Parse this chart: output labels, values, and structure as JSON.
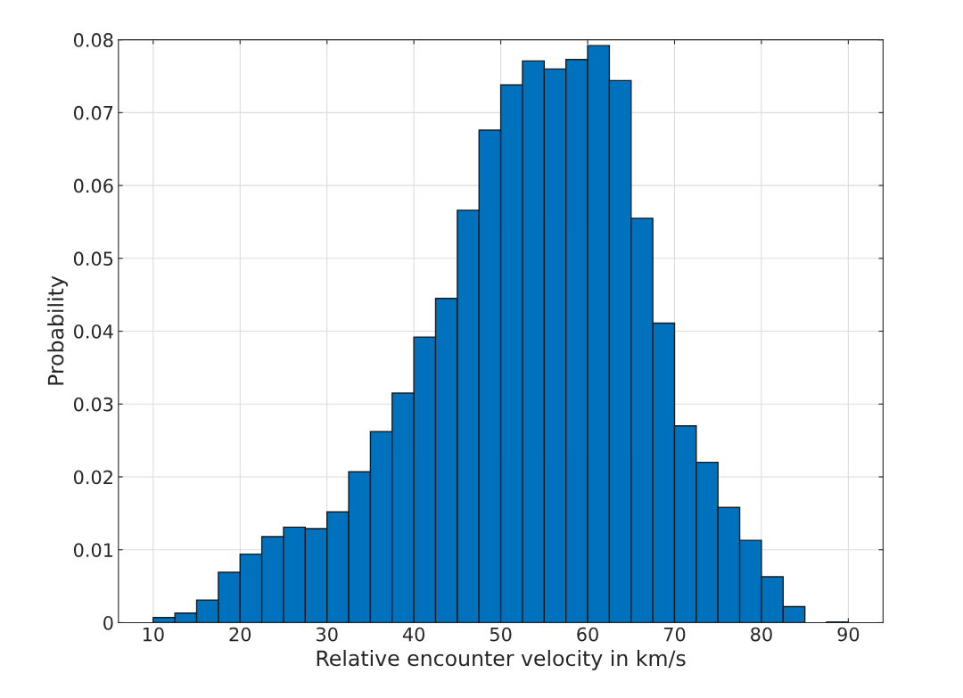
{
  "chart_data": {
    "type": "histogram",
    "xlabel": "Relative encounter velocity in km/s",
    "ylabel": "Probability",
    "color": "#0072bd",
    "bins": [
      10,
      12.5,
      15,
      17.5,
      20,
      22.5,
      25,
      27.5,
      30,
      32.5,
      35,
      37.5,
      40,
      42.5,
      45,
      47.5,
      50,
      52.5,
      55,
      57.5,
      60,
      62.5,
      65,
      67.5,
      70,
      72.5,
      75,
      77.5,
      80,
      82.5,
      85,
      87.5,
      90
    ],
    "values": [
      0.0007,
      0.0013,
      0.0031,
      0.0069,
      0.0094,
      0.0118,
      0.0131,
      0.0129,
      0.0152,
      0.0207,
      0.0262,
      0.0315,
      0.0392,
      0.0445,
      0.0566,
      0.0676,
      0.0738,
      0.0771,
      0.076,
      0.0773,
      0.0792,
      0.0744,
      0.0555,
      0.0411,
      0.027,
      0.022,
      0.0158,
      0.0113,
      0.0063,
      0.0022,
      0,
      0.0001
    ],
    "xlim": [
      6,
      94
    ],
    "xticks": [
      10,
      20,
      30,
      40,
      50,
      60,
      70,
      80,
      90
    ],
    "ylim": [
      0,
      0.08
    ],
    "yticks": [
      0,
      0.01,
      0.02,
      0.03,
      0.04,
      0.05,
      0.06,
      0.07,
      0.08
    ],
    "grid": true
  }
}
